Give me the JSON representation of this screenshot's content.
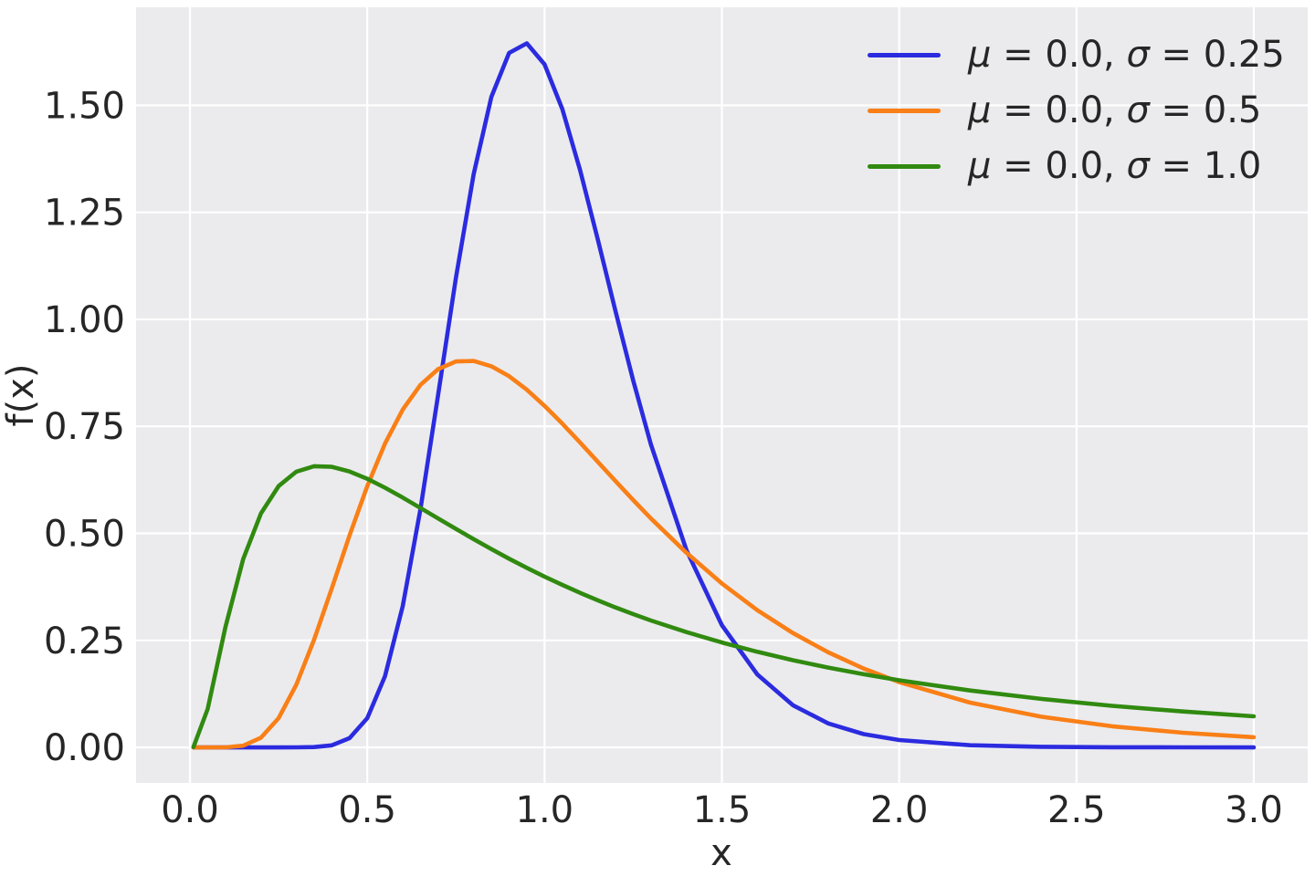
{
  "style": {
    "figure_bg": "#ffffff",
    "axes_bg": "#ebebee",
    "grid_color": "#ffffff",
    "text_color": "#262626"
  },
  "chart_data": {
    "type": "line",
    "title": "",
    "xlabel": "x",
    "ylabel": "f(x)",
    "grid": true,
    "legend_position": "upper right",
    "xlim": [
      -0.152,
      3.152
    ],
    "ylim": [
      -0.083,
      1.729
    ],
    "x_ticks": [
      0.0,
      0.5,
      1.0,
      1.5,
      2.0,
      2.5,
      3.0
    ],
    "x_tick_labels": [
      "0.0",
      "0.5",
      "1.0",
      "1.5",
      "2.0",
      "2.5",
      "3.0"
    ],
    "y_ticks": [
      0.0,
      0.25,
      0.5,
      0.75,
      1.0,
      1.25,
      1.5
    ],
    "y_tick_labels": [
      "0.00",
      "0.25",
      "0.50",
      "0.75",
      "1.00",
      "1.25",
      "1.50"
    ],
    "x": [
      0.01,
      0.05,
      0.1,
      0.15,
      0.2,
      0.25,
      0.3,
      0.35,
      0.4,
      0.45,
      0.5,
      0.55,
      0.6,
      0.65,
      0.7,
      0.75,
      0.8,
      0.85,
      0.9,
      0.95,
      1.0,
      1.05,
      1.1,
      1.15,
      1.2,
      1.25,
      1.3,
      1.4,
      1.5,
      1.6,
      1.7,
      1.8,
      1.9,
      2.0,
      2.2,
      2.4,
      2.6,
      2.8,
      3.0
    ],
    "series": [
      {
        "name": "μ = 0.0, σ = 0.25",
        "mu": 0.0,
        "sigma": 0.25,
        "color": "#2b2bdf",
        "values": [
          0,
          0,
          0,
          0,
          0,
          0,
          0.0001,
          0.0007,
          0.0048,
          0.0216,
          0.0683,
          0.1664,
          0.3299,
          0.5563,
          0.824,
          1.0975,
          1.3393,
          1.5198,
          1.6224,
          1.6448,
          1.5958,
          1.4911,
          1.349,
          1.1869,
          1.0193,
          0.8572,
          0.7077,
          0.4608,
          0.2856,
          0.1704,
          0.0987,
          0.0559,
          0.0311,
          0.0171,
          0.005,
          0.0015,
          0.0004,
          0.0001,
          0
        ]
      },
      {
        "name": "μ = 0.0, σ = 0.5",
        "mu": 0.0,
        "sigma": 0.5,
        "color": "#f97f17",
        "values": [
          0,
          0,
          0.0002,
          0.004,
          0.0225,
          0.0683,
          0.1465,
          0.2515,
          0.372,
          0.4953,
          0.6105,
          0.7098,
          0.7891,
          0.8469,
          0.8838,
          0.9016,
          0.9028,
          0.8904,
          0.8671,
          0.8355,
          0.7979,
          0.7563,
          0.7123,
          0.6672,
          0.6221,
          0.5778,
          0.5348,
          0.4546,
          0.3829,
          0.3206,
          0.2673,
          0.2221,
          0.1842,
          0.1526,
          0.1046,
          0.0718,
          0.0494,
          0.0342,
          0.0238
        ]
      },
      {
        "name": "μ = 0.0, σ = 1.0",
        "mu": 0.0,
        "sigma": 1.0,
        "color": "#318a10",
        "values": [
          0.001,
          0.0897,
          0.2815,
          0.44,
          0.5462,
          0.6105,
          0.6442,
          0.6569,
          0.6554,
          0.6445,
          0.6275,
          0.6066,
          0.5836,
          0.5594,
          0.5348,
          0.5104,
          0.4864,
          0.4632,
          0.4408,
          0.4194,
          0.3989,
          0.3795,
          0.361,
          0.3435,
          0.327,
          0.3113,
          0.2965,
          0.2693,
          0.245,
          0.2233,
          0.2038,
          0.1865,
          0.1709,
          0.1569,
          0.1329,
          0.1133,
          0.0972,
          0.0839,
          0.0727
        ]
      }
    ]
  }
}
